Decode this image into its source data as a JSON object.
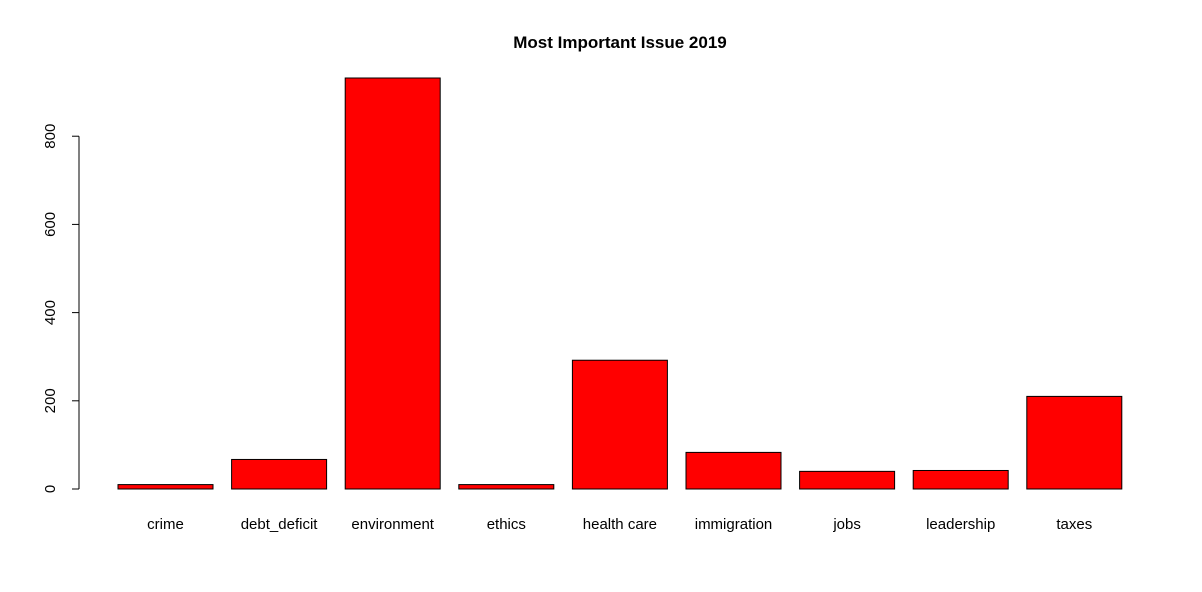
{
  "chart_data": {
    "type": "bar",
    "title": "Most Important Issue 2019",
    "xlabel": "",
    "ylabel": "",
    "categories": [
      "crime",
      "debt_deficit",
      "environment",
      "ethics",
      "health care",
      "immigration",
      "jobs",
      "leadership",
      "taxes"
    ],
    "values": [
      10,
      67,
      932,
      10,
      292,
      83,
      40,
      42,
      210
    ],
    "yticks": [
      0,
      200,
      400,
      600,
      800
    ],
    "ylim": [
      0,
      932
    ],
    "bar_color": "#ff0000",
    "bar_edge_color": "#000000",
    "grid": false,
    "legend": false
  }
}
